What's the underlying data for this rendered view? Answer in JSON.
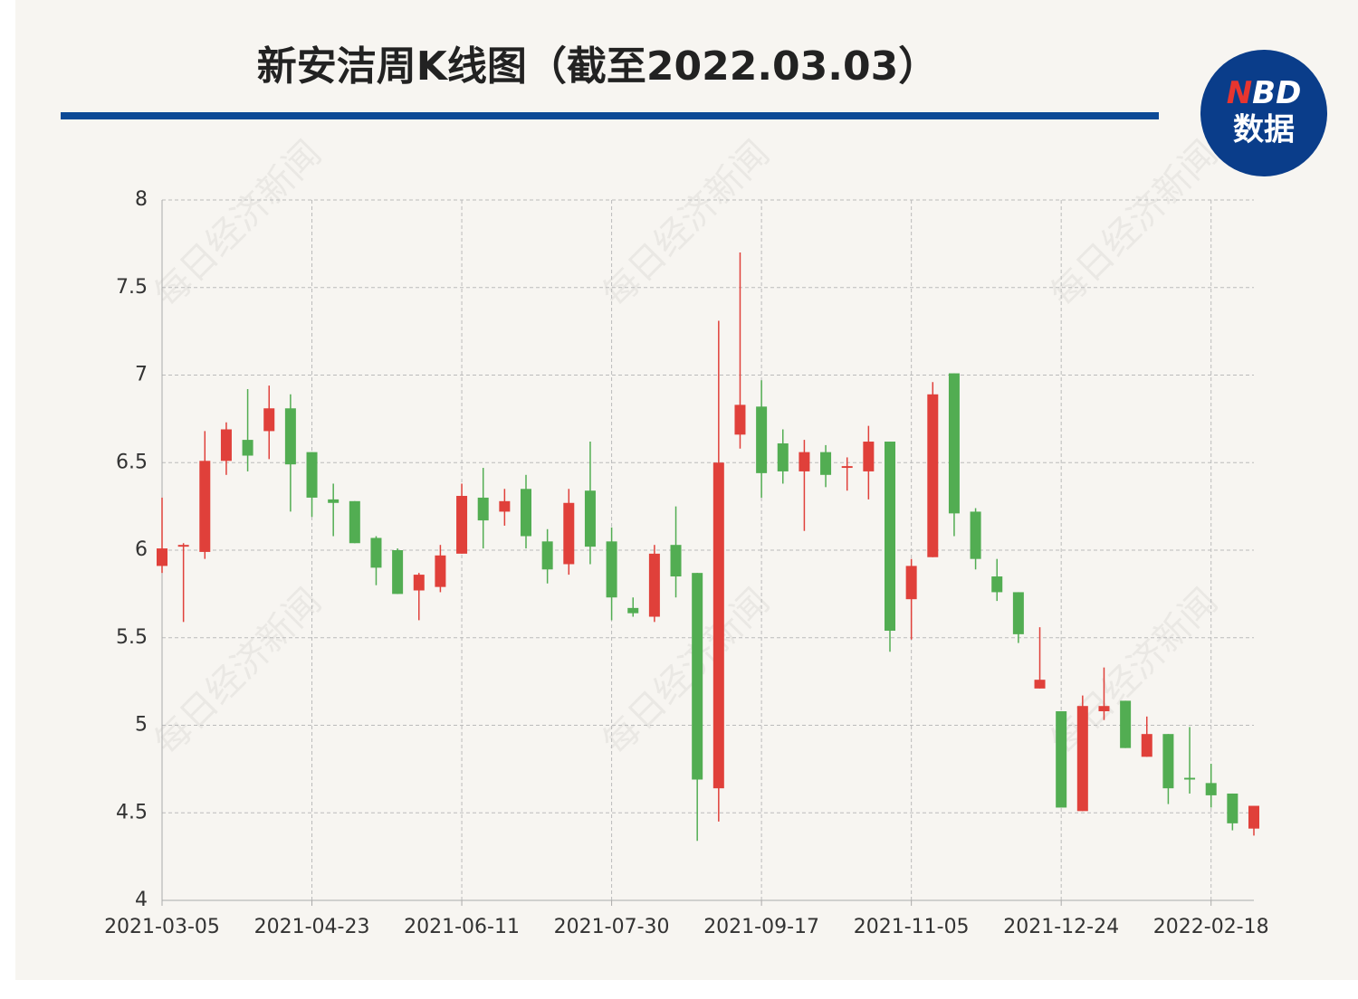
{
  "chart_data": {
    "type": "candlestick",
    "title": "新安洁周K线图（截至2022.03.03）",
    "categories": [
      "2021-03-05",
      null,
      null,
      null,
      null,
      null,
      null,
      "2021-04-23",
      null,
      null,
      null,
      null,
      null,
      null,
      "2021-06-11",
      null,
      null,
      null,
      null,
      null,
      null,
      "2021-07-30",
      null,
      null,
      null,
      null,
      null,
      null,
      "2021-09-17",
      null,
      null,
      null,
      null,
      null,
      null,
      "2021-11-05",
      null,
      null,
      null,
      null,
      null,
      null,
      "2021-12-24",
      null,
      null,
      null,
      null,
      null,
      null,
      "2022-02-18",
      null,
      null
    ],
    "open": [
      5.91,
      6.02,
      5.99,
      6.51,
      6.63,
      6.68,
      6.81,
      6.56,
      6.29,
      6.28,
      6.07,
      6.0,
      5.77,
      5.79,
      5.98,
      6.3,
      6.22,
      6.35,
      6.05,
      5.92,
      6.34,
      6.05,
      5.67,
      5.62,
      6.03,
      5.87,
      4.64,
      6.66,
      6.82,
      6.61,
      6.45,
      6.56,
      6.47,
      6.45,
      6.62,
      5.72,
      5.96,
      7.01,
      6.22,
      5.85,
      5.76,
      5.21,
      5.08,
      4.51,
      5.08,
      5.14,
      4.82,
      4.95,
      4.7,
      4.67,
      4.61,
      4.41
    ],
    "high": [
      6.3,
      6.04,
      6.68,
      6.73,
      6.92,
      6.94,
      6.89,
      6.56,
      6.38,
      6.28,
      6.08,
      6.01,
      5.87,
      6.03,
      6.38,
      6.47,
      6.35,
      6.43,
      6.12,
      6.35,
      6.62,
      6.13,
      5.73,
      6.03,
      6.25,
      5.87,
      7.31,
      7.7,
      6.97,
      6.69,
      6.63,
      6.6,
      6.53,
      6.71,
      6.62,
      5.95,
      6.96,
      7.01,
      6.24,
      5.95,
      5.76,
      5.56,
      5.08,
      5.17,
      5.33,
      5.14,
      5.05,
      4.95,
      4.99,
      4.78,
      4.61,
      4.54
    ],
    "low": [
      5.87,
      5.59,
      5.95,
      6.43,
      6.45,
      6.52,
      6.22,
      6.19,
      6.08,
      6.04,
      5.8,
      5.75,
      5.6,
      5.76,
      5.98,
      6.01,
      6.14,
      6.01,
      5.81,
      5.86,
      5.92,
      5.6,
      5.62,
      5.59,
      5.73,
      4.34,
      4.45,
      6.58,
      6.3,
      6.38,
      6.11,
      6.36,
      6.34,
      6.29,
      5.42,
      5.49,
      5.96,
      6.08,
      5.89,
      5.71,
      5.47,
      5.21,
      4.53,
      4.51,
      5.03,
      4.87,
      4.82,
      4.55,
      4.61,
      4.53,
      4.4,
      4.37
    ],
    "close": [
      6.01,
      6.03,
      6.51,
      6.69,
      6.54,
      6.81,
      6.49,
      6.3,
      6.27,
      6.04,
      5.9,
      5.75,
      5.86,
      5.97,
      6.31,
      6.17,
      6.28,
      6.08,
      5.89,
      6.27,
      6.02,
      5.73,
      5.64,
      5.98,
      5.85,
      4.69,
      6.5,
      6.83,
      6.44,
      6.45,
      6.56,
      6.43,
      6.48,
      6.62,
      5.54,
      5.91,
      6.89,
      6.21,
      5.95,
      5.76,
      5.52,
      5.26,
      4.53,
      5.11,
      5.11,
      4.87,
      4.95,
      4.64,
      4.69,
      4.6,
      4.44,
      4.54
    ],
    "up_color": "#e0403a",
    "down_color": "#52ad52",
    "ylim": [
      4,
      8
    ],
    "yticks": [
      4,
      4.5,
      5,
      5.5,
      6,
      6.5,
      7,
      7.5,
      8
    ],
    "grid": true
  },
  "logo": {
    "mark_red": "N",
    "mark_white": "BD",
    "subtitle": "数据"
  },
  "watermark": "每日经济新闻"
}
